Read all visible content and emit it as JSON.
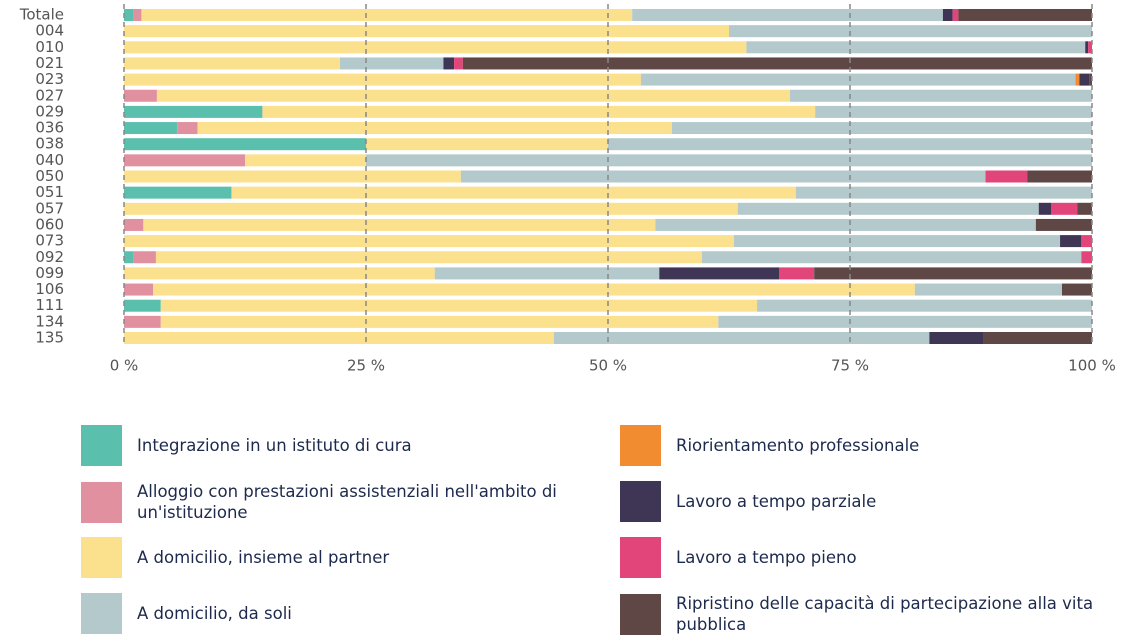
{
  "chart_data": {
    "type": "stacked_barh",
    "categories": [
      "Totale",
      "004",
      "010",
      "021",
      "023",
      "027",
      "029",
      "036",
      "038",
      "040",
      "050",
      "051",
      "057",
      "060",
      "073",
      "092",
      "099",
      "106",
      "111",
      "134",
      "135"
    ],
    "series": [
      {
        "name": "Integrazione in un istituto di cura",
        "color": "#5bbfad",
        "values": [
          1.0,
          0,
          0,
          0,
          0,
          0,
          14.3,
          5.5,
          25.0,
          0,
          0,
          11.1,
          0,
          0,
          0,
          1.0,
          0,
          0,
          3.8,
          0,
          0
        ]
      },
      {
        "name": "Alloggio con prestazioni assistenziali nell'ambito di un'istituzione",
        "color": "#e0909f",
        "values": [
          0.8,
          0,
          0,
          0,
          0,
          3.4,
          0,
          2.1,
          0,
          12.5,
          0,
          0,
          0,
          2.0,
          0,
          2.3,
          0,
          3.0,
          0,
          3.8,
          0
        ]
      },
      {
        "name": "A domicilio, insieme al partner",
        "color": "#fbe08d",
        "values": [
          50.7,
          62.5,
          64.3,
          22.3,
          53.4,
          65.4,
          57.1,
          49.0,
          25.0,
          12.5,
          34.8,
          58.3,
          63.4,
          52.9,
          63.0,
          56.4,
          32.1,
          78.7,
          61.6,
          57.6,
          44.4
        ]
      },
      {
        "name": "A domicilio, da soli",
        "color": "#b3c9cc",
        "values": [
          32.1,
          37.5,
          35.0,
          10.7,
          44.9,
          31.2,
          28.6,
          43.4,
          50.0,
          75.0,
          54.2,
          30.6,
          31.1,
          39.3,
          33.7,
          39.2,
          23.2,
          15.2,
          34.6,
          38.6,
          38.8
        ]
      },
      {
        "name": "Riorientamento professionale",
        "color": "#f28c30",
        "values": [
          0,
          0,
          0,
          0,
          0.4,
          0,
          0,
          0,
          0,
          0,
          0,
          0,
          0,
          0,
          0,
          0,
          0,
          0,
          0,
          0,
          0
        ]
      },
      {
        "name": "Lavoro a tempo parziale",
        "color": "#3f3555",
        "values": [
          1.0,
          0,
          0.3,
          1.1,
          1.0,
          0,
          0,
          0,
          0,
          0,
          0,
          0,
          1.3,
          0,
          2.2,
          0,
          12.4,
          0,
          0,
          0,
          5.6
        ]
      },
      {
        "name": "Lavoro a tempo pieno",
        "color": "#e2457a",
        "values": [
          0.6,
          0,
          0.4,
          0.9,
          0,
          0,
          0,
          0,
          0,
          0,
          4.3,
          0,
          2.7,
          0,
          1.1,
          1.1,
          3.6,
          0,
          0,
          0,
          0
        ]
      },
      {
        "name": "Ripristino delle capacità di partecipazione alla vita pubblica",
        "color": "#5e4744",
        "values": [
          13.8,
          0,
          0,
          65.0,
          0.3,
          0,
          0,
          0,
          0,
          0,
          6.7,
          0,
          1.5,
          5.8,
          0,
          0,
          28.7,
          3.1,
          0,
          0,
          11.2
        ]
      }
    ],
    "xlim": [
      0,
      100
    ],
    "xticks": [
      {
        "value": 0,
        "label": "0 %"
      },
      {
        "value": 25,
        "label": "25 %"
      },
      {
        "value": 50,
        "label": "50 %"
      },
      {
        "value": 75,
        "label": "75 %"
      },
      {
        "value": 100,
        "label": "100 %"
      }
    ],
    "grid": true
  }
}
